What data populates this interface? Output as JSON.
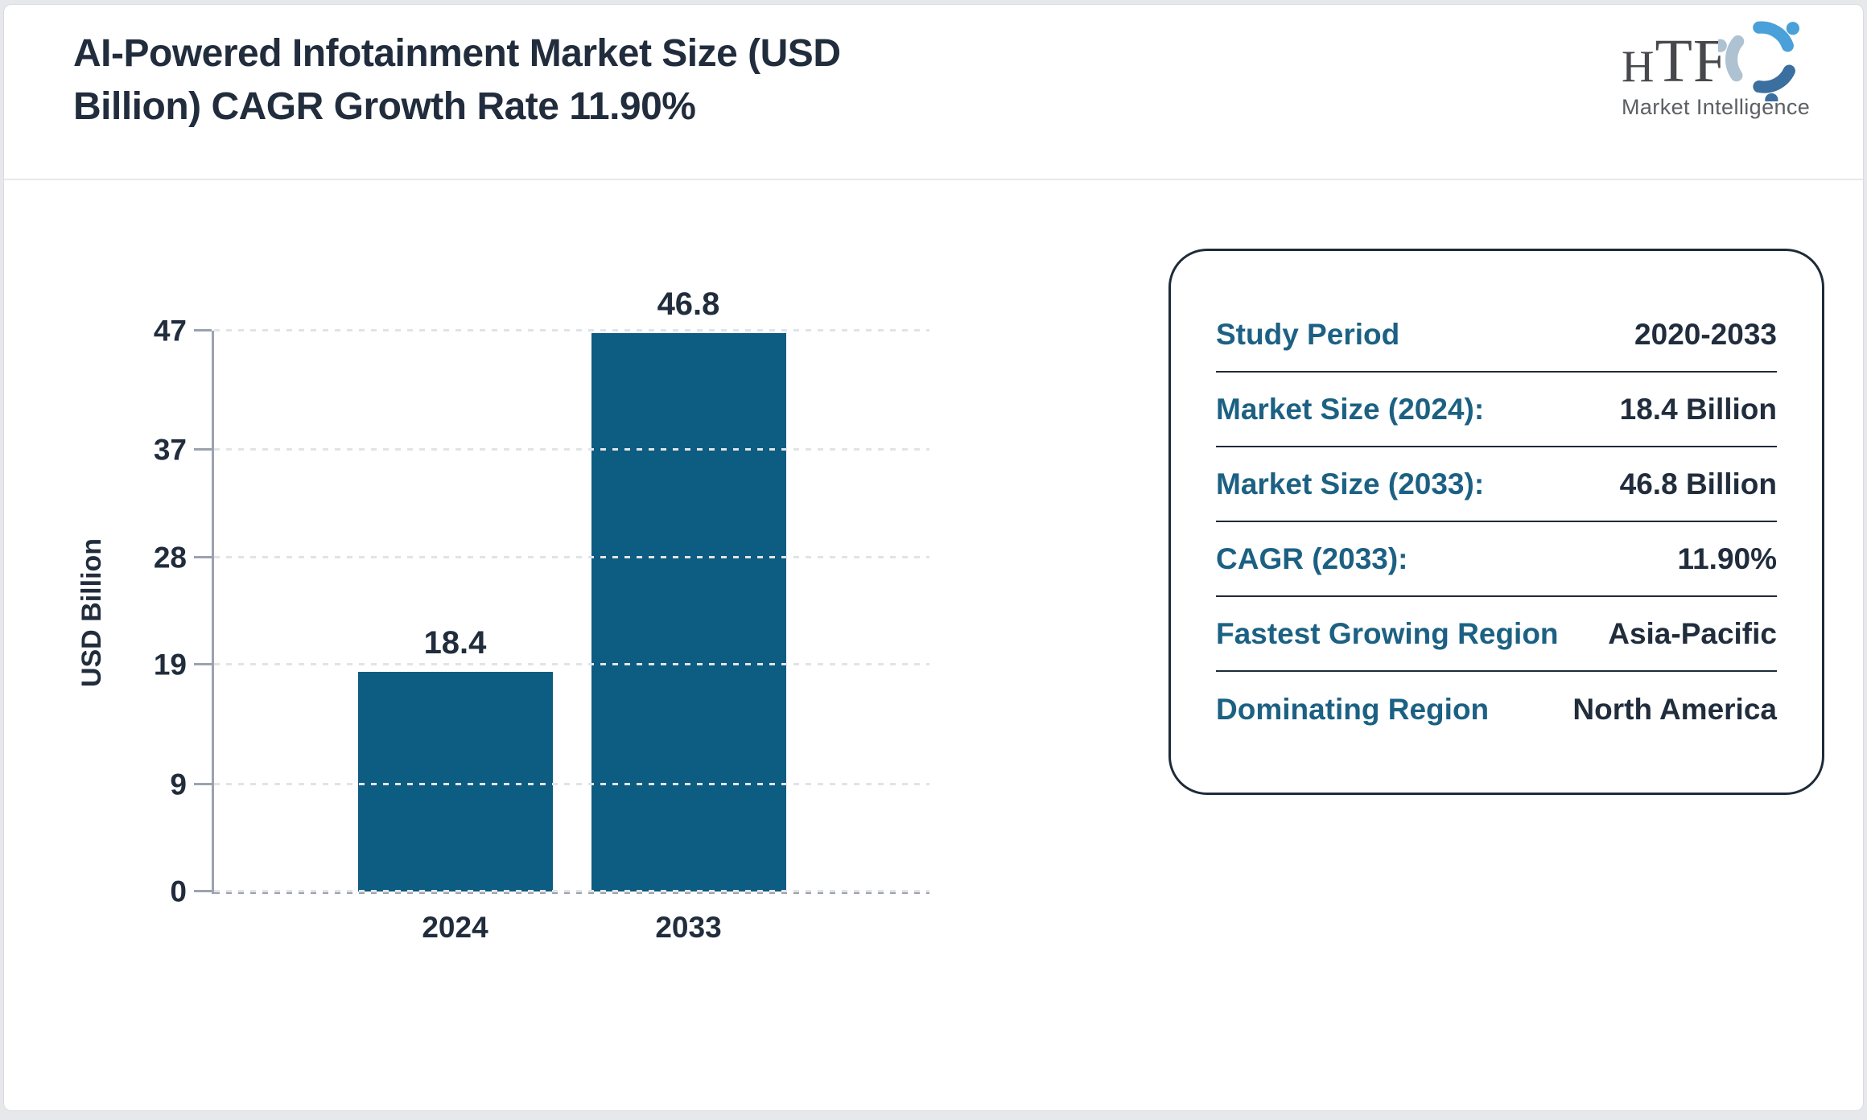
{
  "header": {
    "title": "AI-Powered Infotainment Market Size (USD Billion) CAGR Growth Rate 11.90%",
    "logo": {
      "abbr": "HTF",
      "name": "Market Intelligence"
    }
  },
  "chart_data": {
    "type": "bar",
    "title": "AI-Powered Infotainment Market Size (USD Billion) CAGR Growth Rate 11.90%",
    "categories": [
      "2024",
      "2033"
    ],
    "values": [
      18.4,
      46.8
    ],
    "bar_labels": [
      "18.4",
      "46.8"
    ],
    "xlabel": "",
    "ylabel": "USD Billion",
    "ylim": [
      0,
      47
    ],
    "yticks": [
      0,
      9,
      19,
      28,
      37,
      47
    ],
    "grid": "horizontal-dashed",
    "legend": "none",
    "bar_color": "#0d5c81"
  },
  "panel": {
    "rows": [
      {
        "label": "Study Period",
        "value": "2020-2033"
      },
      {
        "label": "Market Size (2024):",
        "value": "18.4 Billion"
      },
      {
        "label": "Market Size (2033):",
        "value": "46.8 Billion"
      },
      {
        "label": "CAGR (2033):",
        "value": "11.90%"
      },
      {
        "label": "Fastest Growing Region",
        "value": "Asia-Pacific"
      },
      {
        "label": "Dominating Region",
        "value": "North America"
      }
    ]
  },
  "colors": {
    "bar": "#0d5c81",
    "label_teal": "#1c6183",
    "text_dark": "#212d3d",
    "axis_gray": "#9aa3ae",
    "panel_border": "#1d2b3a",
    "logo_light_blue": "#4aa0d8",
    "logo_steel_blue": "#3a6f9f",
    "logo_gray_blue": "#aec2d1"
  }
}
